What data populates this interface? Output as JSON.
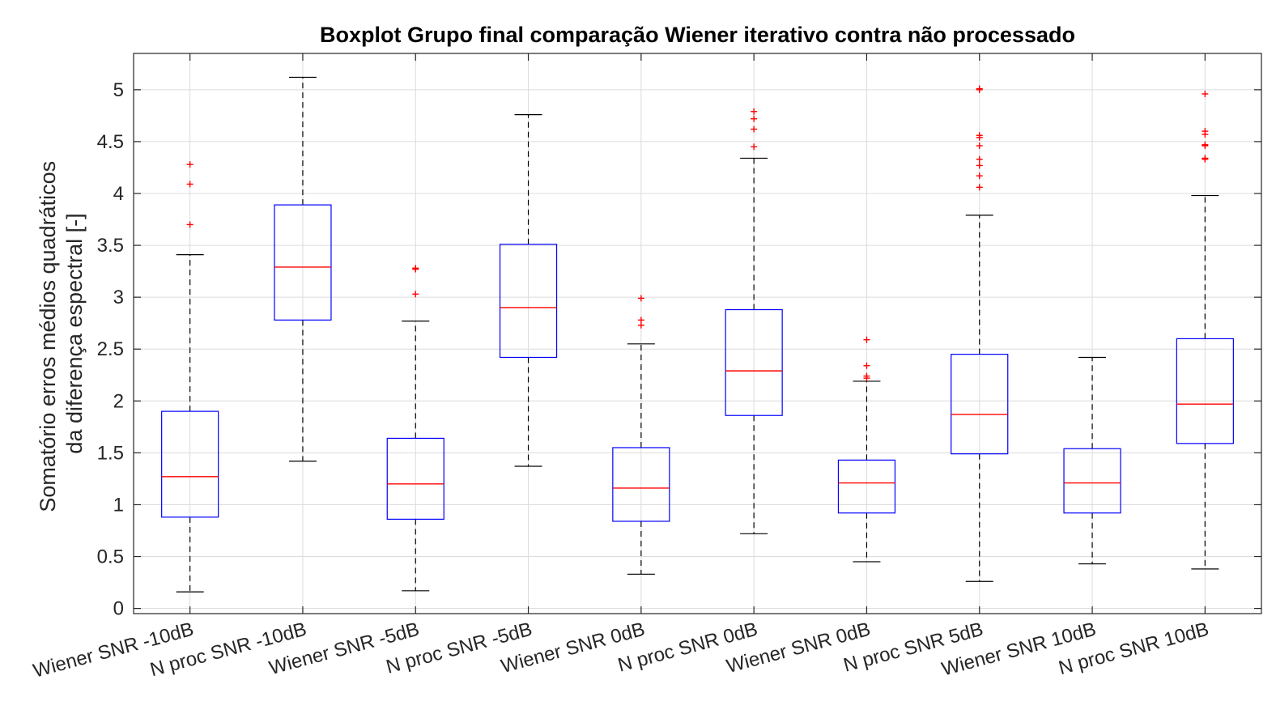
{
  "chart_data": {
    "type": "boxplot",
    "title": "Boxplot Grupo final comparação Wiener iterativo contra não processado",
    "xlabel": "",
    "ylabel_lines": [
      "Somatório erros médios quadráticos",
      "da diferença espectral [-]"
    ],
    "ylim": [
      -0.05,
      5.35
    ],
    "yticks": [
      0,
      0.5,
      1,
      1.5,
      2,
      2.5,
      3,
      3.5,
      4,
      4.5,
      5
    ],
    "ytick_labels": [
      "0",
      "0.5",
      "1",
      "1.5",
      "2",
      "2.5",
      "3",
      "3.5",
      "4",
      "4.5",
      "5"
    ],
    "grid": true,
    "colors": {
      "box": "#0000ff",
      "median": "#ff0000",
      "whisker": "#000000",
      "outlier": "#ff0000",
      "grid": "#dcdcdc",
      "axis": "#262626"
    },
    "categories": [
      "Wiener SNR -10dB",
      "N proc SNR -10dB",
      "Wiener SNR -5dB",
      "N proc SNR -5dB",
      "Wiener SNR 0dB",
      "N proc SNR 0dB",
      "Wiener SNR 0dB",
      "N proc SNR 5dB",
      "Wiener SNR 10dB",
      "N proc SNR 10dB"
    ],
    "boxes": [
      {
        "whisker_low": 0.16,
        "q1": 0.88,
        "median": 1.27,
        "q3": 1.9,
        "whisker_high": 3.41,
        "outliers": [
          3.7,
          4.09,
          4.28
        ]
      },
      {
        "whisker_low": 1.42,
        "q1": 2.78,
        "median": 3.29,
        "q3": 3.89,
        "whisker_high": 5.12,
        "outliers": []
      },
      {
        "whisker_low": 0.17,
        "q1": 0.86,
        "median": 1.2,
        "q3": 1.64,
        "whisker_high": 2.77,
        "outliers": [
          3.03,
          3.27,
          3.28
        ]
      },
      {
        "whisker_low": 1.37,
        "q1": 2.42,
        "median": 2.9,
        "q3": 3.51,
        "whisker_high": 4.76,
        "outliers": []
      },
      {
        "whisker_low": 0.33,
        "q1": 0.84,
        "median": 1.16,
        "q3": 1.55,
        "whisker_high": 2.55,
        "outliers": [
          2.73,
          2.78,
          2.99
        ]
      },
      {
        "whisker_low": 0.72,
        "q1": 1.86,
        "median": 2.29,
        "q3": 2.88,
        "whisker_high": 4.34,
        "outliers": [
          4.45,
          4.62,
          4.72,
          4.79
        ]
      },
      {
        "whisker_low": 0.45,
        "q1": 0.92,
        "median": 1.21,
        "q3": 1.43,
        "whisker_high": 2.19,
        "outliers": [
          2.22,
          2.24,
          2.34,
          2.59
        ]
      },
      {
        "whisker_low": 0.26,
        "q1": 1.49,
        "median": 1.87,
        "q3": 2.45,
        "whisker_high": 3.79,
        "outliers": [
          4.06,
          4.17,
          4.27,
          4.33,
          4.46,
          4.54,
          4.56,
          5.0,
          5.01
        ]
      },
      {
        "whisker_low": 0.43,
        "q1": 0.92,
        "median": 1.21,
        "q3": 1.54,
        "whisker_high": 2.42,
        "outliers": []
      },
      {
        "whisker_low": 0.38,
        "q1": 1.59,
        "median": 1.97,
        "q3": 2.6,
        "whisker_high": 3.98,
        "outliers": [
          4.33,
          4.34,
          4.46,
          4.47,
          4.57,
          4.6,
          4.96
        ]
      }
    ]
  }
}
